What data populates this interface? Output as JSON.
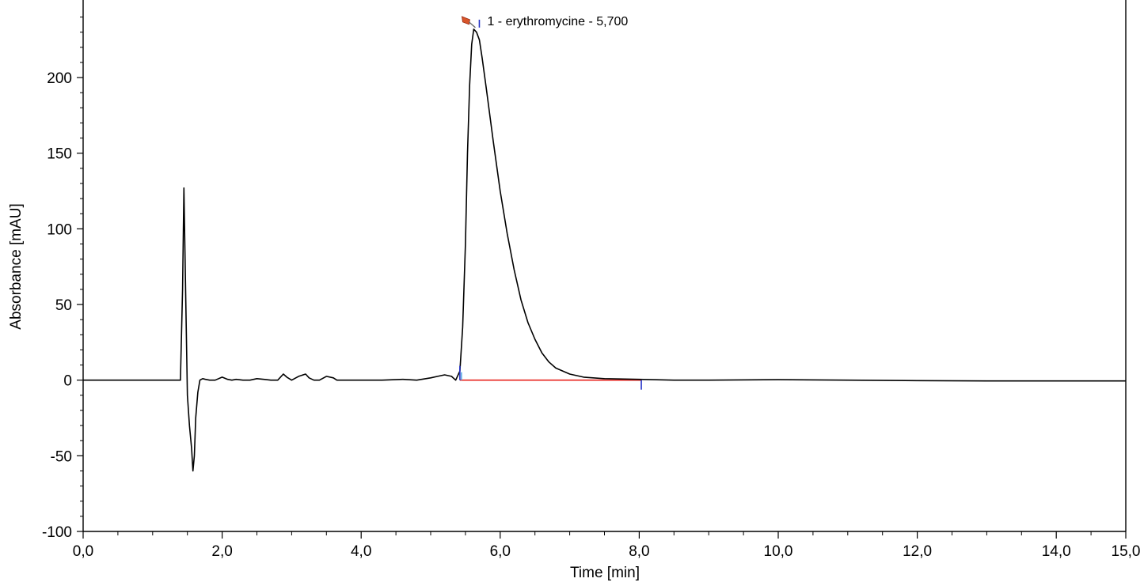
{
  "chart_data": {
    "type": "line",
    "title": "",
    "xlabel": "Time [min]",
    "ylabel": "Absorbance [mAU]",
    "xlim": [
      0,
      15
    ],
    "ylim": [
      -100,
      245
    ],
    "grid": false,
    "x_ticks": [
      0,
      2,
      4,
      6,
      8,
      10,
      12,
      14,
      15
    ],
    "x_tick_labels": [
      "0,0",
      "2,0",
      "4,0",
      "6,0",
      "8,0",
      "10,0",
      "12,0",
      "14,0",
      "15,0"
    ],
    "y_ticks": [
      -100,
      -50,
      0,
      50,
      100,
      150,
      200
    ],
    "y_tick_labels": [
      "-100",
      "-50",
      "0",
      "50",
      "100",
      "150",
      "200"
    ],
    "series": [
      {
        "color": "#000000",
        "x": [
          0.0,
          1.25,
          1.35,
          1.4,
          1.43,
          1.45,
          1.47,
          1.5,
          1.53,
          1.56,
          1.58,
          1.6,
          1.62,
          1.65,
          1.68,
          1.72,
          1.76,
          1.82,
          1.9,
          2.0,
          2.08,
          2.14,
          2.2,
          2.3,
          2.4,
          2.5,
          2.6,
          2.7,
          2.8,
          2.88,
          2.93,
          3.0,
          3.1,
          3.2,
          3.25,
          3.32,
          3.4,
          3.5,
          3.6,
          3.65,
          3.72,
          3.8,
          4.0,
          4.3,
          4.6,
          4.8,
          5.0,
          5.1,
          5.2,
          5.3,
          5.36,
          5.42,
          5.46,
          5.5,
          5.53,
          5.56,
          5.59,
          5.62,
          5.66,
          5.7,
          5.74,
          5.8,
          5.9,
          6.0,
          6.1,
          6.2,
          6.3,
          6.4,
          6.5,
          6.6,
          6.7,
          6.8,
          7.0,
          7.2,
          7.5,
          8.0,
          8.5,
          9.0,
          10.0,
          11.0,
          12.0,
          13.0,
          14.0,
          15.0
        ],
        "y": [
          0,
          0,
          0,
          0,
          60,
          127,
          70,
          -10,
          -30,
          -45,
          -60,
          -50,
          -25,
          -8,
          0,
          1,
          0.5,
          0,
          0,
          2,
          0.5,
          0,
          0.5,
          0,
          0,
          1,
          0.5,
          0,
          0,
          4,
          2,
          0,
          2.5,
          4,
          1.5,
          0,
          0,
          2.5,
          1.5,
          0,
          0,
          0,
          0,
          0,
          0.5,
          0,
          1.5,
          2.5,
          3.5,
          2.5,
          0,
          6,
          35,
          90,
          150,
          195,
          222,
          232,
          230,
          225,
          213,
          193,
          158,
          125,
          97,
          73,
          53,
          38,
          27,
          18,
          12,
          8,
          4,
          2,
          1,
          0.5,
          0,
          0,
          0.3,
          0,
          -0.3,
          -0.5,
          -0.5,
          -0.5
        ]
      }
    ],
    "annotations": [
      {
        "x": 5.7,
        "y": 232,
        "text": "1 - erythromycine - 5,700",
        "marker": "pin-icon"
      }
    ],
    "integration_baseline": {
      "x": [
        5.42,
        8.03
      ],
      "y": [
        0,
        0
      ],
      "color": "#e8251f"
    },
    "peak_markers": {
      "start": 5.42,
      "apex": 5.7,
      "end": 8.03,
      "color": "#2432c8",
      "start_color": "#4aa3e0"
    }
  }
}
